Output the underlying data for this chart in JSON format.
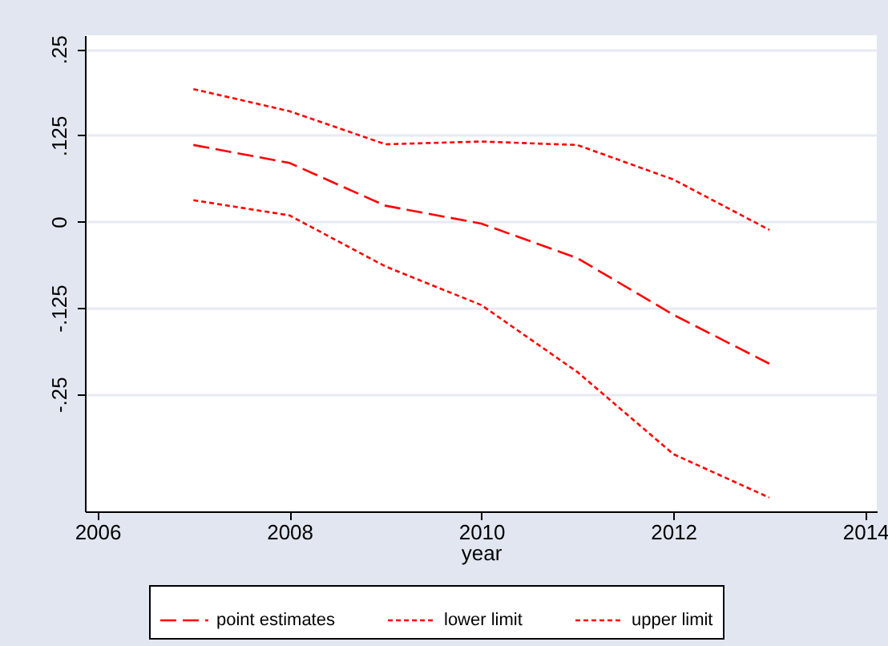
{
  "chart_data": {
    "type": "line",
    "xlabel": "year",
    "x": [
      2007,
      2008,
      2009,
      2010,
      2011,
      2012,
      2013
    ],
    "series": [
      {
        "name": "point estimates",
        "color": "#ff0000",
        "line_style": "dashed",
        "values": [
          0.111,
          0.085,
          0.023,
          -0.003,
          -0.053,
          -0.135,
          -0.206
        ]
      },
      {
        "name": "lower limit",
        "color": "#ff0000",
        "line_style": "dotted",
        "values": [
          0.031,
          0.009,
          -0.065,
          -0.121,
          -0.218,
          -0.337,
          -0.4
        ]
      },
      {
        "name": "upper limit",
        "color": "#ff0000",
        "line_style": "dotted",
        "values": [
          0.192,
          0.16,
          0.112,
          0.116,
          0.111,
          0.061,
          -0.012
        ]
      }
    ],
    "xlim": [
      2005.87,
      2014.12
    ],
    "xticks": [
      2006,
      2008,
      2010,
      2012,
      2014
    ],
    "ylim": [
      -0.42,
      0.27
    ],
    "yticks": [
      {
        "value": 0.25,
        "label": ".25"
      },
      {
        "value": 0.125,
        "label": ".125"
      },
      {
        "value": 0,
        "label": "0"
      },
      {
        "value": -0.125,
        "label": "-.125"
      },
      {
        "value": -0.25,
        "label": "-.25"
      }
    ],
    "grid": "y",
    "legend": "bottom",
    "marker": "none"
  }
}
